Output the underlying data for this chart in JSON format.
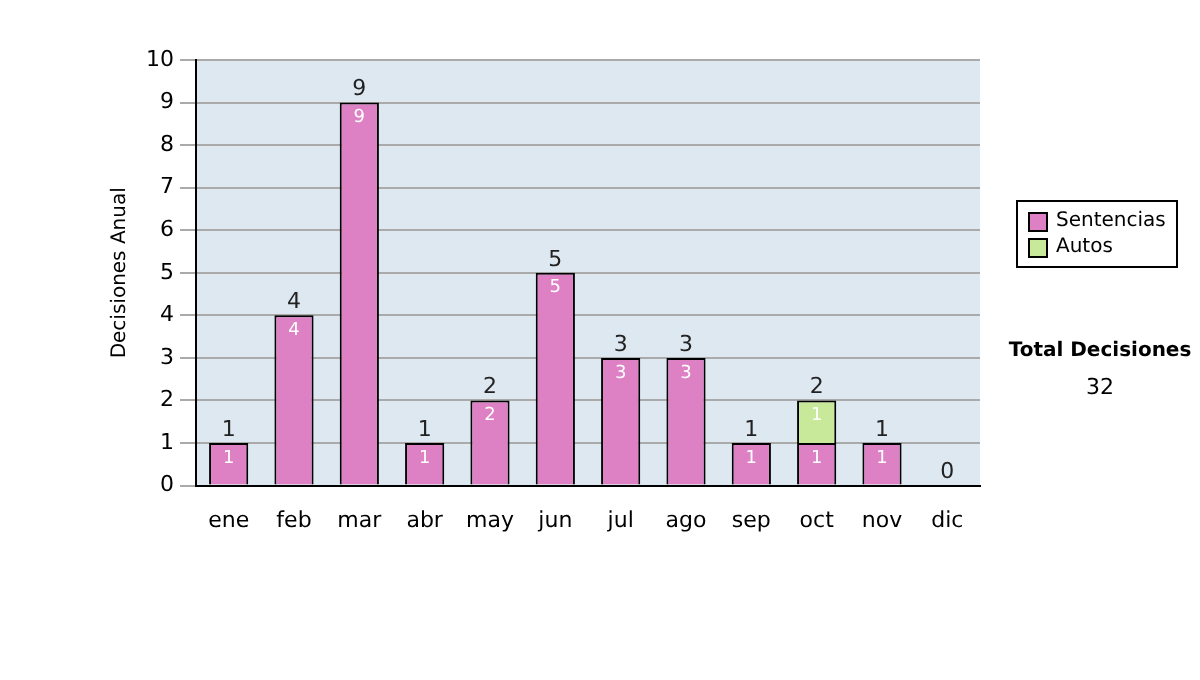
{
  "chart_data": {
    "type": "bar",
    "stacked": true,
    "ylabel": "Decisiones Anual",
    "categories": [
      "ene",
      "feb",
      "mar",
      "abr",
      "may",
      "jun",
      "jul",
      "ago",
      "sep",
      "oct",
      "nov",
      "dic"
    ],
    "series": [
      {
        "name": "Sentencias",
        "color": "#dd80c4",
        "values": [
          1,
          4,
          9,
          1,
          2,
          5,
          3,
          3,
          1,
          1,
          1,
          0
        ],
        "value_labels": [
          "1",
          "4",
          "9",
          "1",
          "2",
          "5",
          "3",
          "3",
          "1",
          "1",
          "1",
          null
        ]
      },
      {
        "name": "Autos",
        "color": "#c8e89a",
        "values": [
          0,
          0,
          0,
          0,
          0,
          0,
          0,
          0,
          0,
          1,
          0,
          0
        ],
        "value_labels": [
          null,
          null,
          null,
          null,
          null,
          null,
          null,
          null,
          null,
          "1",
          null,
          null
        ]
      }
    ],
    "totals": [
      "1",
      "4",
      "9",
      "1",
      "2",
      "5",
      "3",
      "3",
      "1",
      "2",
      "1",
      "0"
    ],
    "ylim": [
      0,
      10
    ],
    "yticks": [
      0,
      1,
      2,
      3,
      4,
      5,
      6,
      7,
      8,
      9,
      10
    ],
    "grid": "y",
    "legend": "right",
    "annotations": [
      "Total Decisiones",
      "32"
    ]
  }
}
